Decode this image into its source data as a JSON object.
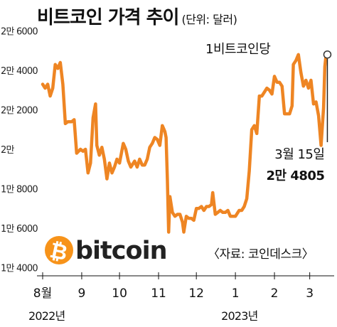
{
  "chart_data": {
    "type": "line",
    "title": "비트코인 가격 추이",
    "unit": "(단위: 달러)",
    "series": [
      {
        "name": "1비트코인당",
        "color": "#ee8523",
        "points": [
          [
            "2022-08-01",
            23300
          ],
          [
            "2022-08-03",
            23100
          ],
          [
            "2022-08-05",
            23300
          ],
          [
            "2022-08-07",
            22700
          ],
          [
            "2022-08-09",
            23100
          ],
          [
            "2022-08-11",
            24300
          ],
          [
            "2022-08-13",
            24100
          ],
          [
            "2022-08-15",
            24400
          ],
          [
            "2022-08-17",
            23300
          ],
          [
            "2022-08-19",
            21300
          ],
          [
            "2022-08-21",
            21400
          ],
          [
            "2022-08-24",
            21400
          ],
          [
            "2022-08-26",
            21500
          ],
          [
            "2022-08-28",
            19800
          ],
          [
            "2022-08-31",
            20000
          ],
          [
            "2022-09-02",
            19900
          ],
          [
            "2022-09-04",
            20000
          ],
          [
            "2022-09-06",
            18800
          ],
          [
            "2022-09-08",
            19300
          ],
          [
            "2022-09-10",
            21600
          ],
          [
            "2022-09-12",
            22300
          ],
          [
            "2022-09-13",
            20200
          ],
          [
            "2022-09-15",
            19700
          ],
          [
            "2022-09-17",
            20100
          ],
          [
            "2022-09-19",
            19500
          ],
          [
            "2022-09-21",
            18500
          ],
          [
            "2022-09-23",
            19300
          ],
          [
            "2022-09-25",
            18800
          ],
          [
            "2022-09-27",
            19100
          ],
          [
            "2022-09-29",
            19500
          ],
          [
            "2022-10-01",
            19300
          ],
          [
            "2022-10-04",
            20300
          ],
          [
            "2022-10-06",
            20000
          ],
          [
            "2022-10-08",
            19400
          ],
          [
            "2022-10-10",
            19100
          ],
          [
            "2022-10-13",
            19400
          ],
          [
            "2022-10-15",
            19100
          ],
          [
            "2022-10-17",
            19500
          ],
          [
            "2022-10-19",
            19200
          ],
          [
            "2022-10-21",
            19200
          ],
          [
            "2022-10-23",
            19500
          ],
          [
            "2022-10-25",
            20100
          ],
          [
            "2022-10-27",
            20300
          ],
          [
            "2022-10-29",
            20600
          ],
          [
            "2022-10-31",
            20500
          ],
          [
            "2022-11-02",
            20200
          ],
          [
            "2022-11-04",
            21200
          ],
          [
            "2022-11-06",
            20900
          ],
          [
            "2022-11-07",
            20600
          ],
          [
            "2022-11-08",
            18500
          ],
          [
            "2022-11-09",
            15800
          ],
          [
            "2022-11-10",
            17600
          ],
          [
            "2022-11-12",
            16800
          ],
          [
            "2022-11-14",
            16600
          ],
          [
            "2022-11-16",
            16700
          ],
          [
            "2022-11-18",
            16700
          ],
          [
            "2022-11-20",
            16300
          ],
          [
            "2022-11-21",
            15800
          ],
          [
            "2022-11-23",
            16600
          ],
          [
            "2022-11-25",
            16500
          ],
          [
            "2022-11-27",
            16500
          ],
          [
            "2022-11-29",
            16400
          ],
          [
            "2022-12-01",
            17000
          ],
          [
            "2022-12-03",
            17000
          ],
          [
            "2022-12-05",
            17100
          ],
          [
            "2022-12-07",
            16900
          ],
          [
            "2022-12-09",
            17100
          ],
          [
            "2022-12-11",
            17100
          ],
          [
            "2022-12-13",
            17200
          ],
          [
            "2022-12-14",
            17800
          ],
          [
            "2022-12-16",
            16700
          ],
          [
            "2022-12-18",
            16800
          ],
          [
            "2022-12-20",
            16900
          ],
          [
            "2022-12-22",
            16800
          ],
          [
            "2022-12-24",
            16800
          ],
          [
            "2022-12-26",
            16900
          ],
          [
            "2022-12-28",
            16600
          ],
          [
            "2022-12-30",
            16600
          ],
          [
            "2023-01-01",
            16600
          ],
          [
            "2023-01-04",
            16900
          ],
          [
            "2023-01-06",
            16900
          ],
          [
            "2023-01-08",
            17100
          ],
          [
            "2023-01-10",
            17500
          ],
          [
            "2023-01-12",
            18900
          ],
          [
            "2023-01-14",
            21000
          ],
          [
            "2023-01-16",
            21200
          ],
          [
            "2023-01-18",
            20800
          ],
          [
            "2023-01-20",
            22700
          ],
          [
            "2023-01-22",
            22700
          ],
          [
            "2023-01-24",
            22900
          ],
          [
            "2023-01-26",
            23100
          ],
          [
            "2023-01-28",
            23000
          ],
          [
            "2023-01-30",
            22800
          ],
          [
            "2023-02-01",
            23700
          ],
          [
            "2023-02-03",
            23400
          ],
          [
            "2023-02-05",
            23400
          ],
          [
            "2023-02-07",
            23200
          ],
          [
            "2023-02-09",
            21800
          ],
          [
            "2023-02-11",
            21800
          ],
          [
            "2023-02-13",
            21800
          ],
          [
            "2023-02-15",
            22200
          ],
          [
            "2023-02-16",
            24300
          ],
          [
            "2023-02-18",
            24500
          ],
          [
            "2023-02-20",
            24800
          ],
          [
            "2023-02-22",
            23900
          ],
          [
            "2023-02-24",
            23200
          ],
          [
            "2023-02-26",
            23500
          ],
          [
            "2023-02-28",
            23100
          ],
          [
            "2023-03-02",
            23500
          ],
          [
            "2023-03-04",
            22300
          ],
          [
            "2023-03-06",
            22400
          ],
          [
            "2023-03-08",
            21700
          ],
          [
            "2023-03-10",
            20200
          ],
          [
            "2023-03-12",
            22100
          ],
          [
            "2023-03-13",
            24200
          ],
          [
            "2023-03-14",
            24800
          ],
          [
            "2023-03-15",
            24805
          ]
        ]
      }
    ],
    "yticks": [
      {
        "value": 14000,
        "label": "1만 4000"
      },
      {
        "value": 16000,
        "label": "1만 6000"
      },
      {
        "value": 18000,
        "label": "1만 8000"
      },
      {
        "value": 20000,
        "label": "2만"
      },
      {
        "value": 22000,
        "label": "2만 2000"
      },
      {
        "value": 24000,
        "label": "2만 4000"
      },
      {
        "value": 26000,
        "label": "2만 6000"
      }
    ],
    "xticks": [
      {
        "date": "2022-08-01",
        "label": "8월"
      },
      {
        "date": "2022-09-01",
        "label": "9"
      },
      {
        "date": "2022-10-01",
        "label": "10"
      },
      {
        "date": "2022-11-01",
        "label": "11"
      },
      {
        "date": "2022-12-01",
        "label": "12"
      },
      {
        "date": "2023-01-01",
        "label": "1"
      },
      {
        "date": "2023-02-01",
        "label": "2"
      },
      {
        "date": "2023-03-01",
        "label": "3"
      }
    ],
    "years": [
      {
        "date": "2022-08-01",
        "label": "2022년"
      },
      {
        "date": "2023-01-01",
        "label": "2023년"
      }
    ],
    "xlim": [
      "2022-08-01",
      "2023-03-17"
    ],
    "ylim": [
      13800,
      26200
    ],
    "annotation": {
      "date": "2023-03-15",
      "value": 24805,
      "date_label": "3월 15일",
      "value_label": "2만 4805"
    },
    "grid": false
  },
  "source": "〈자료: 코인데스크〉",
  "logo": {
    "text": "bitcoin",
    "symbol": "₿",
    "color": "#f7931a"
  }
}
